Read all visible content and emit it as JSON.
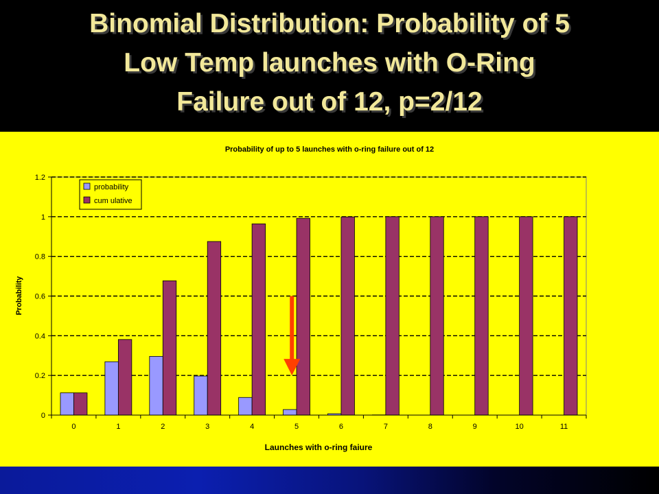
{
  "slide": {
    "title_lines": [
      "Binomial Distribution: Probability of  5",
      "Low Temp launches with O-Ring",
      "Failure out of 12, p=2/12"
    ]
  },
  "colors": {
    "title_text": "#f2e89a",
    "chart_background": "#ffff00",
    "probability_bar": "#9999ff",
    "cumulative_bar": "#993366",
    "arrow": "#ff4000"
  },
  "chart_data": {
    "type": "bar",
    "title": "Probability of up to 5 launches with o-ring failure out of 12",
    "xlabel": "Launches with o-ring faiure",
    "ylabel": "Probability",
    "categories": [
      "0",
      "1",
      "2",
      "3",
      "4",
      "5",
      "6",
      "7",
      "8",
      "9",
      "10",
      "11"
    ],
    "ylim": [
      0,
      1.2
    ],
    "yticks": [
      "0",
      "0.2",
      "0.4",
      "0.6",
      "0.8",
      "1",
      "1.2"
    ],
    "grid": true,
    "legend_position": "top-left",
    "series": [
      {
        "name": "probability",
        "color": "#9999ff",
        "values": [
          0.112,
          0.269,
          0.296,
          0.197,
          0.089,
          0.028,
          0.007,
          0.001,
          0.0,
          0.0,
          0.0,
          0.0
        ]
      },
      {
        "name": "cum ulative",
        "color": "#993366",
        "values": [
          0.112,
          0.381,
          0.677,
          0.875,
          0.964,
          0.992,
          0.999,
          1.0,
          1.0,
          1.0,
          1.0,
          1.0
        ]
      }
    ],
    "annotation": {
      "type": "arrow",
      "category": "5",
      "from": 0.6,
      "to": 0.2
    }
  }
}
